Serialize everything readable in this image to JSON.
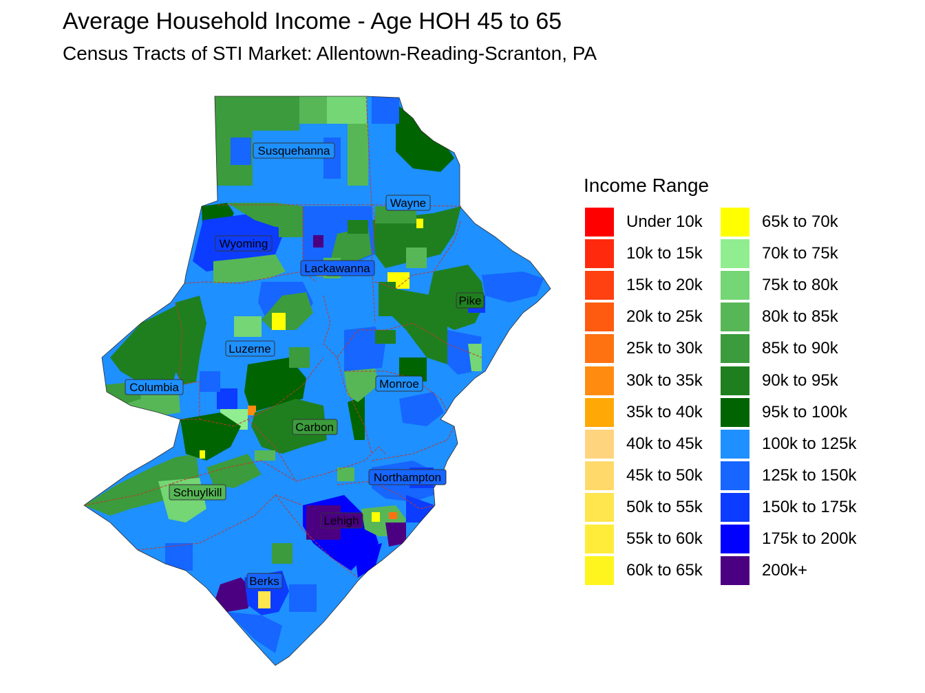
{
  "title": "Average Household Income - Age HOH 45 to 65",
  "subtitle": "Census Tracts of STI Market: Allentown-Reading-Scranton, PA",
  "legend": {
    "title": "Income Range",
    "items": [
      {
        "label": "Under 10k",
        "color": "#ff0000"
      },
      {
        "label": "10k to 15k",
        "color": "#ff2a0d"
      },
      {
        "label": "15k to 20k",
        "color": "#ff4010"
      },
      {
        "label": "20k to 25k",
        "color": "#ff5b10"
      },
      {
        "label": "25k to 30k",
        "color": "#ff7212"
      },
      {
        "label": "30k to 35k",
        "color": "#ff8c10"
      },
      {
        "label": "35k to 40k",
        "color": "#ffa806"
      },
      {
        "label": "40k to 45k",
        "color": "#ffd47e"
      },
      {
        "label": "45k to 50k",
        "color": "#ffd96a"
      },
      {
        "label": "50k to 55k",
        "color": "#ffe54e"
      },
      {
        "label": "55k to 60k",
        "color": "#ffec3a"
      },
      {
        "label": "60k to 65k",
        "color": "#fff51e"
      },
      {
        "label": "65k to 70k",
        "color": "#ffff00"
      },
      {
        "label": "70k to 75k",
        "color": "#90ee90"
      },
      {
        "label": "75k to 80k",
        "color": "#74d674"
      },
      {
        "label": "80k to 85k",
        "color": "#57b757"
      },
      {
        "label": "85k to 90k",
        "color": "#3c9b3c"
      },
      {
        "label": "90k to 95k",
        "color": "#1f7f1f"
      },
      {
        "label": "95k to 100k",
        "color": "#006400"
      },
      {
        "label": "100k to 125k",
        "color": "#1e90ff"
      },
      {
        "label": "125k to 150k",
        "color": "#1666ff"
      },
      {
        "label": "150k to 175k",
        "color": "#0c3cff"
      },
      {
        "label": "175k to 200k",
        "color": "#0000ff"
      },
      {
        "label": "200k+",
        "color": "#4b0082"
      }
    ]
  },
  "counties": [
    {
      "name": "Susquehanna"
    },
    {
      "name": "Wayne"
    },
    {
      "name": "Wyoming"
    },
    {
      "name": "Lackawanna"
    },
    {
      "name": "Pike"
    },
    {
      "name": "Luzerne"
    },
    {
      "name": "Columbia"
    },
    {
      "name": "Monroe"
    },
    {
      "name": "Carbon"
    },
    {
      "name": "Northampton"
    },
    {
      "name": "Schuylkill"
    },
    {
      "name": "Lehigh"
    },
    {
      "name": "Berks"
    }
  ],
  "colors": {
    "county_border": "#c0392b",
    "label_border": "#333333",
    "label_fill": "#1e90ff"
  }
}
